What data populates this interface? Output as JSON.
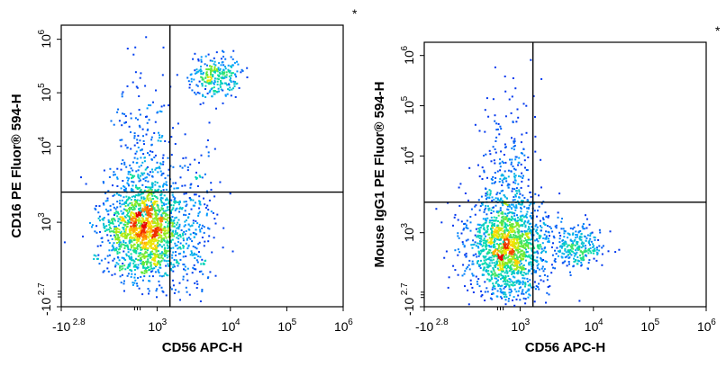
{
  "chart_data": [
    {
      "type": "scatter",
      "plot_style": "flow cytometry density dot plot (blue to red)",
      "xlabel": "CD56 APC-H",
      "ylabel": "CD16 PE Fluor® 594-H",
      "annotation": "*",
      "x_scale": "biexponential",
      "y_scale": "biexponential",
      "xlim": [
        "-10^2.8",
        "10^6"
      ],
      "ylim": [
        "-10^2.7",
        "10^6"
      ],
      "x_ticks": [
        {
          "base": "-10",
          "exp": "2.8"
        },
        {
          "base": "10",
          "exp": "3"
        },
        {
          "base": "10",
          "exp": "4"
        },
        {
          "base": "10",
          "exp": "5"
        },
        {
          "base": "10",
          "exp": "6"
        }
      ],
      "y_ticks": [
        {
          "base": "-10",
          "exp": "2.7"
        },
        {
          "base": "10",
          "exp": "3"
        },
        {
          "base": "10",
          "exp": "4"
        },
        {
          "base": "10",
          "exp": "5"
        },
        {
          "base": "10",
          "exp": "6"
        }
      ],
      "quadrant_gate": {
        "x": 1500,
        "y": 2500
      },
      "populations": [
        {
          "x": 350,
          "y": 700,
          "density": "high"
        },
        {
          "x": 6000,
          "y": 200000,
          "density": "medium"
        },
        {
          "x": 350,
          "y": 8000,
          "density": "low"
        },
        {
          "x": 3000,
          "y": 800,
          "density": "low"
        }
      ]
    },
    {
      "type": "scatter",
      "plot_style": "flow cytometry density dot plot (blue to red)",
      "xlabel": "CD56 APC-H",
      "ylabel": "Mouse IgG1 PE Fluor® 594-H",
      "annotation": "*",
      "x_scale": "biexponential",
      "y_scale": "biexponential",
      "xlim": [
        "-10^2.8",
        "10^6"
      ],
      "ylim": [
        "-10^2.7",
        "10^6"
      ],
      "x_ticks": [
        {
          "base": "-10",
          "exp": "2.8"
        },
        {
          "base": "10",
          "exp": "3"
        },
        {
          "base": "10",
          "exp": "4"
        },
        {
          "base": "10",
          "exp": "5"
        },
        {
          "base": "10",
          "exp": "6"
        }
      ],
      "y_ticks": [
        {
          "base": "-10",
          "exp": "2.7"
        },
        {
          "base": "10",
          "exp": "3"
        },
        {
          "base": "10",
          "exp": "4"
        },
        {
          "base": "10",
          "exp": "5"
        },
        {
          "base": "10",
          "exp": "6"
        }
      ],
      "quadrant_gate": {
        "x": 1500,
        "y": 2500
      },
      "populations": [
        {
          "x": 350,
          "y": 500,
          "density": "high"
        },
        {
          "x": 6000,
          "y": 500,
          "density": "medium"
        },
        {
          "x": 350,
          "y": 5000,
          "density": "low"
        }
      ]
    }
  ]
}
